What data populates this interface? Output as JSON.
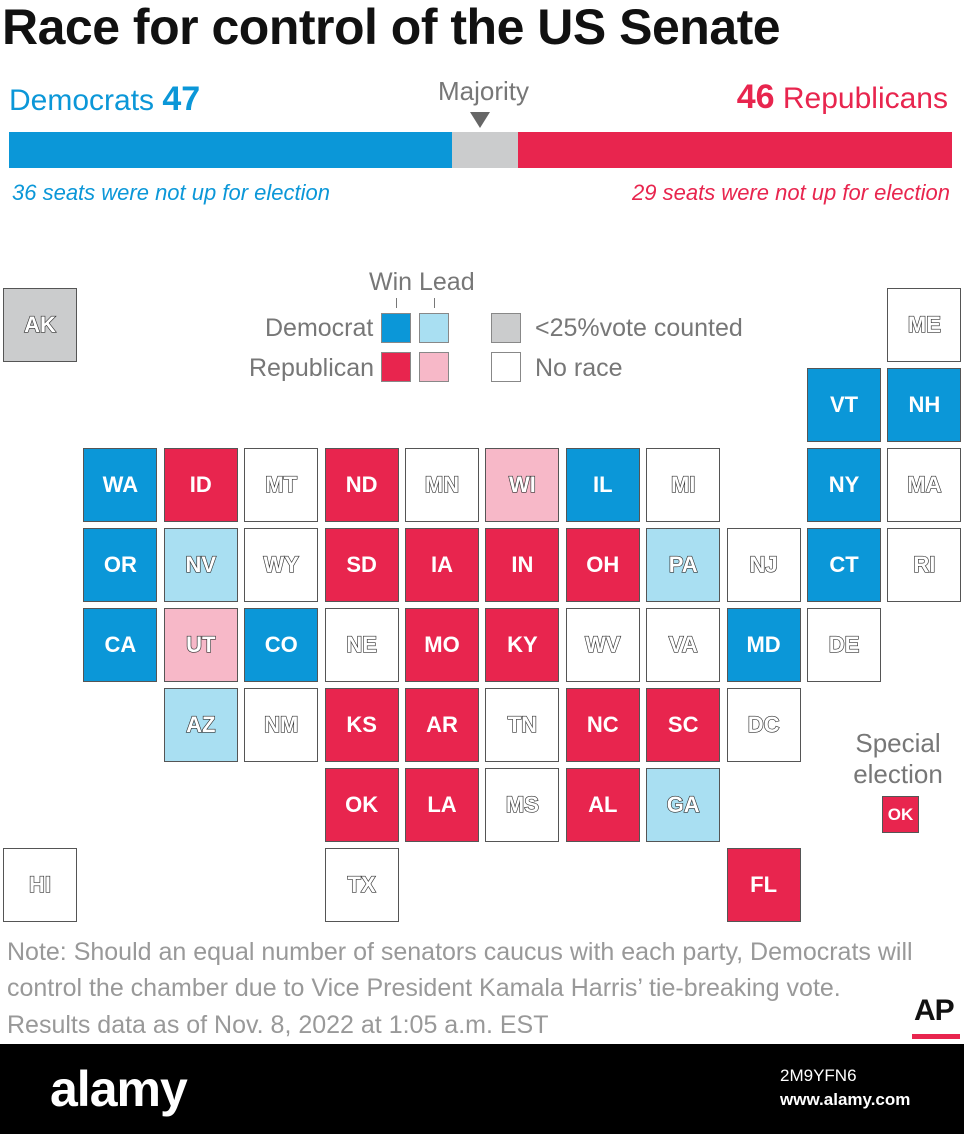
{
  "title": "Race for control of the US Senate",
  "header": {
    "dem_name": "Democrats",
    "dem_seats": "47",
    "rep_seats": "46",
    "rep_name": "Republicans",
    "majority_label": "Majority",
    "dem_not_up": "36 seats were not up for election",
    "rep_not_up": "29 seats were not up for election"
  },
  "seat_bar": {
    "total": 100,
    "dem": 47,
    "rep": 46
  },
  "colors": {
    "dem_win": "#0b97d8",
    "dem_lead": "#a9dff2",
    "rep_win": "#e8254e",
    "rep_lead": "#f7b8c8",
    "under25": "#cbcccd",
    "norace": "#ffffff"
  },
  "legend": {
    "win": "Win",
    "lead": "Lead",
    "democrat": "Democrat",
    "republican": "Republican",
    "under25": "<25%vote counted",
    "norace": "No race"
  },
  "states": [
    {
      "abbr": "AK",
      "status": "under25",
      "col": 0,
      "row": 0
    },
    {
      "abbr": "ME",
      "status": "norace",
      "col": 11,
      "row": 0
    },
    {
      "abbr": "VT",
      "status": "dem_win",
      "col": 10,
      "row": 1
    },
    {
      "abbr": "NH",
      "status": "dem_win",
      "col": 11,
      "row": 1
    },
    {
      "abbr": "WA",
      "status": "dem_win",
      "col": 1,
      "row": 2
    },
    {
      "abbr": "ID",
      "status": "rep_win",
      "col": 2,
      "row": 2
    },
    {
      "abbr": "MT",
      "status": "norace",
      "col": 3,
      "row": 2
    },
    {
      "abbr": "ND",
      "status": "rep_win",
      "col": 4,
      "row": 2
    },
    {
      "abbr": "MN",
      "status": "norace",
      "col": 5,
      "row": 2
    },
    {
      "abbr": "WI",
      "status": "rep_lead",
      "col": 6,
      "row": 2
    },
    {
      "abbr": "IL",
      "status": "dem_win",
      "col": 7,
      "row": 2
    },
    {
      "abbr": "MI",
      "status": "norace",
      "col": 8,
      "row": 2
    },
    {
      "abbr": "NY",
      "status": "dem_win",
      "col": 10,
      "row": 2
    },
    {
      "abbr": "MA",
      "status": "norace",
      "col": 11,
      "row": 2
    },
    {
      "abbr": "OR",
      "status": "dem_win",
      "col": 1,
      "row": 3
    },
    {
      "abbr": "NV",
      "status": "dem_lead",
      "col": 2,
      "row": 3
    },
    {
      "abbr": "WY",
      "status": "norace",
      "col": 3,
      "row": 3
    },
    {
      "abbr": "SD",
      "status": "rep_win",
      "col": 4,
      "row": 3
    },
    {
      "abbr": "IA",
      "status": "rep_win",
      "col": 5,
      "row": 3
    },
    {
      "abbr": "IN",
      "status": "rep_win",
      "col": 6,
      "row": 3
    },
    {
      "abbr": "OH",
      "status": "rep_win",
      "col": 7,
      "row": 3
    },
    {
      "abbr": "PA",
      "status": "dem_lead",
      "col": 8,
      "row": 3
    },
    {
      "abbr": "NJ",
      "status": "norace",
      "col": 9,
      "row": 3
    },
    {
      "abbr": "CT",
      "status": "dem_win",
      "col": 10,
      "row": 3
    },
    {
      "abbr": "RI",
      "status": "norace",
      "col": 11,
      "row": 3
    },
    {
      "abbr": "CA",
      "status": "dem_win",
      "col": 1,
      "row": 4
    },
    {
      "abbr": "UT",
      "status": "rep_lead",
      "col": 2,
      "row": 4
    },
    {
      "abbr": "CO",
      "status": "dem_win",
      "col": 3,
      "row": 4
    },
    {
      "abbr": "NE",
      "status": "norace",
      "col": 4,
      "row": 4
    },
    {
      "abbr": "MO",
      "status": "rep_win",
      "col": 5,
      "row": 4
    },
    {
      "abbr": "KY",
      "status": "rep_win",
      "col": 6,
      "row": 4
    },
    {
      "abbr": "WV",
      "status": "norace",
      "col": 7,
      "row": 4
    },
    {
      "abbr": "VA",
      "status": "norace",
      "col": 8,
      "row": 4
    },
    {
      "abbr": "MD",
      "status": "dem_win",
      "col": 9,
      "row": 4
    },
    {
      "abbr": "DE",
      "status": "norace",
      "col": 10,
      "row": 4
    },
    {
      "abbr": "AZ",
      "status": "dem_lead",
      "col": 2,
      "row": 5
    },
    {
      "abbr": "NM",
      "status": "norace",
      "col": 3,
      "row": 5
    },
    {
      "abbr": "KS",
      "status": "rep_win",
      "col": 4,
      "row": 5
    },
    {
      "abbr": "AR",
      "status": "rep_win",
      "col": 5,
      "row": 5
    },
    {
      "abbr": "TN",
      "status": "norace",
      "col": 6,
      "row": 5
    },
    {
      "abbr": "NC",
      "status": "rep_win",
      "col": 7,
      "row": 5
    },
    {
      "abbr": "SC",
      "status": "rep_win",
      "col": 8,
      "row": 5
    },
    {
      "abbr": "DC",
      "status": "norace",
      "col": 9,
      "row": 5
    },
    {
      "abbr": "OK",
      "status": "rep_win",
      "col": 4,
      "row": 6
    },
    {
      "abbr": "LA",
      "status": "rep_win",
      "col": 5,
      "row": 6
    },
    {
      "abbr": "MS",
      "status": "norace",
      "col": 6,
      "row": 6
    },
    {
      "abbr": "AL",
      "status": "rep_win",
      "col": 7,
      "row": 6
    },
    {
      "abbr": "GA",
      "status": "dem_lead",
      "col": 8,
      "row": 6
    },
    {
      "abbr": "HI",
      "status": "norace",
      "col": 0,
      "row": 7
    },
    {
      "abbr": "TX",
      "status": "norace",
      "col": 4,
      "row": 7
    },
    {
      "abbr": "FL",
      "status": "rep_win",
      "col": 9,
      "row": 7
    }
  ],
  "special": {
    "label": "Special election",
    "abbr": "OK",
    "status": "rep_win"
  },
  "notes": {
    "line1": "Note: Should an equal number of senators caucus with each party, Democrats will",
    "line2": "control the chamber due to Vice President Kamala Harris’ tie-breaking vote.",
    "line3": "Results data as of Nov. 8, 2022 at 1:05 a.m. EST"
  },
  "ap_logo": "AP",
  "footer": {
    "brand": "alamy",
    "image_id": "2M9YFN6",
    "url": "www.alamy.com"
  }
}
